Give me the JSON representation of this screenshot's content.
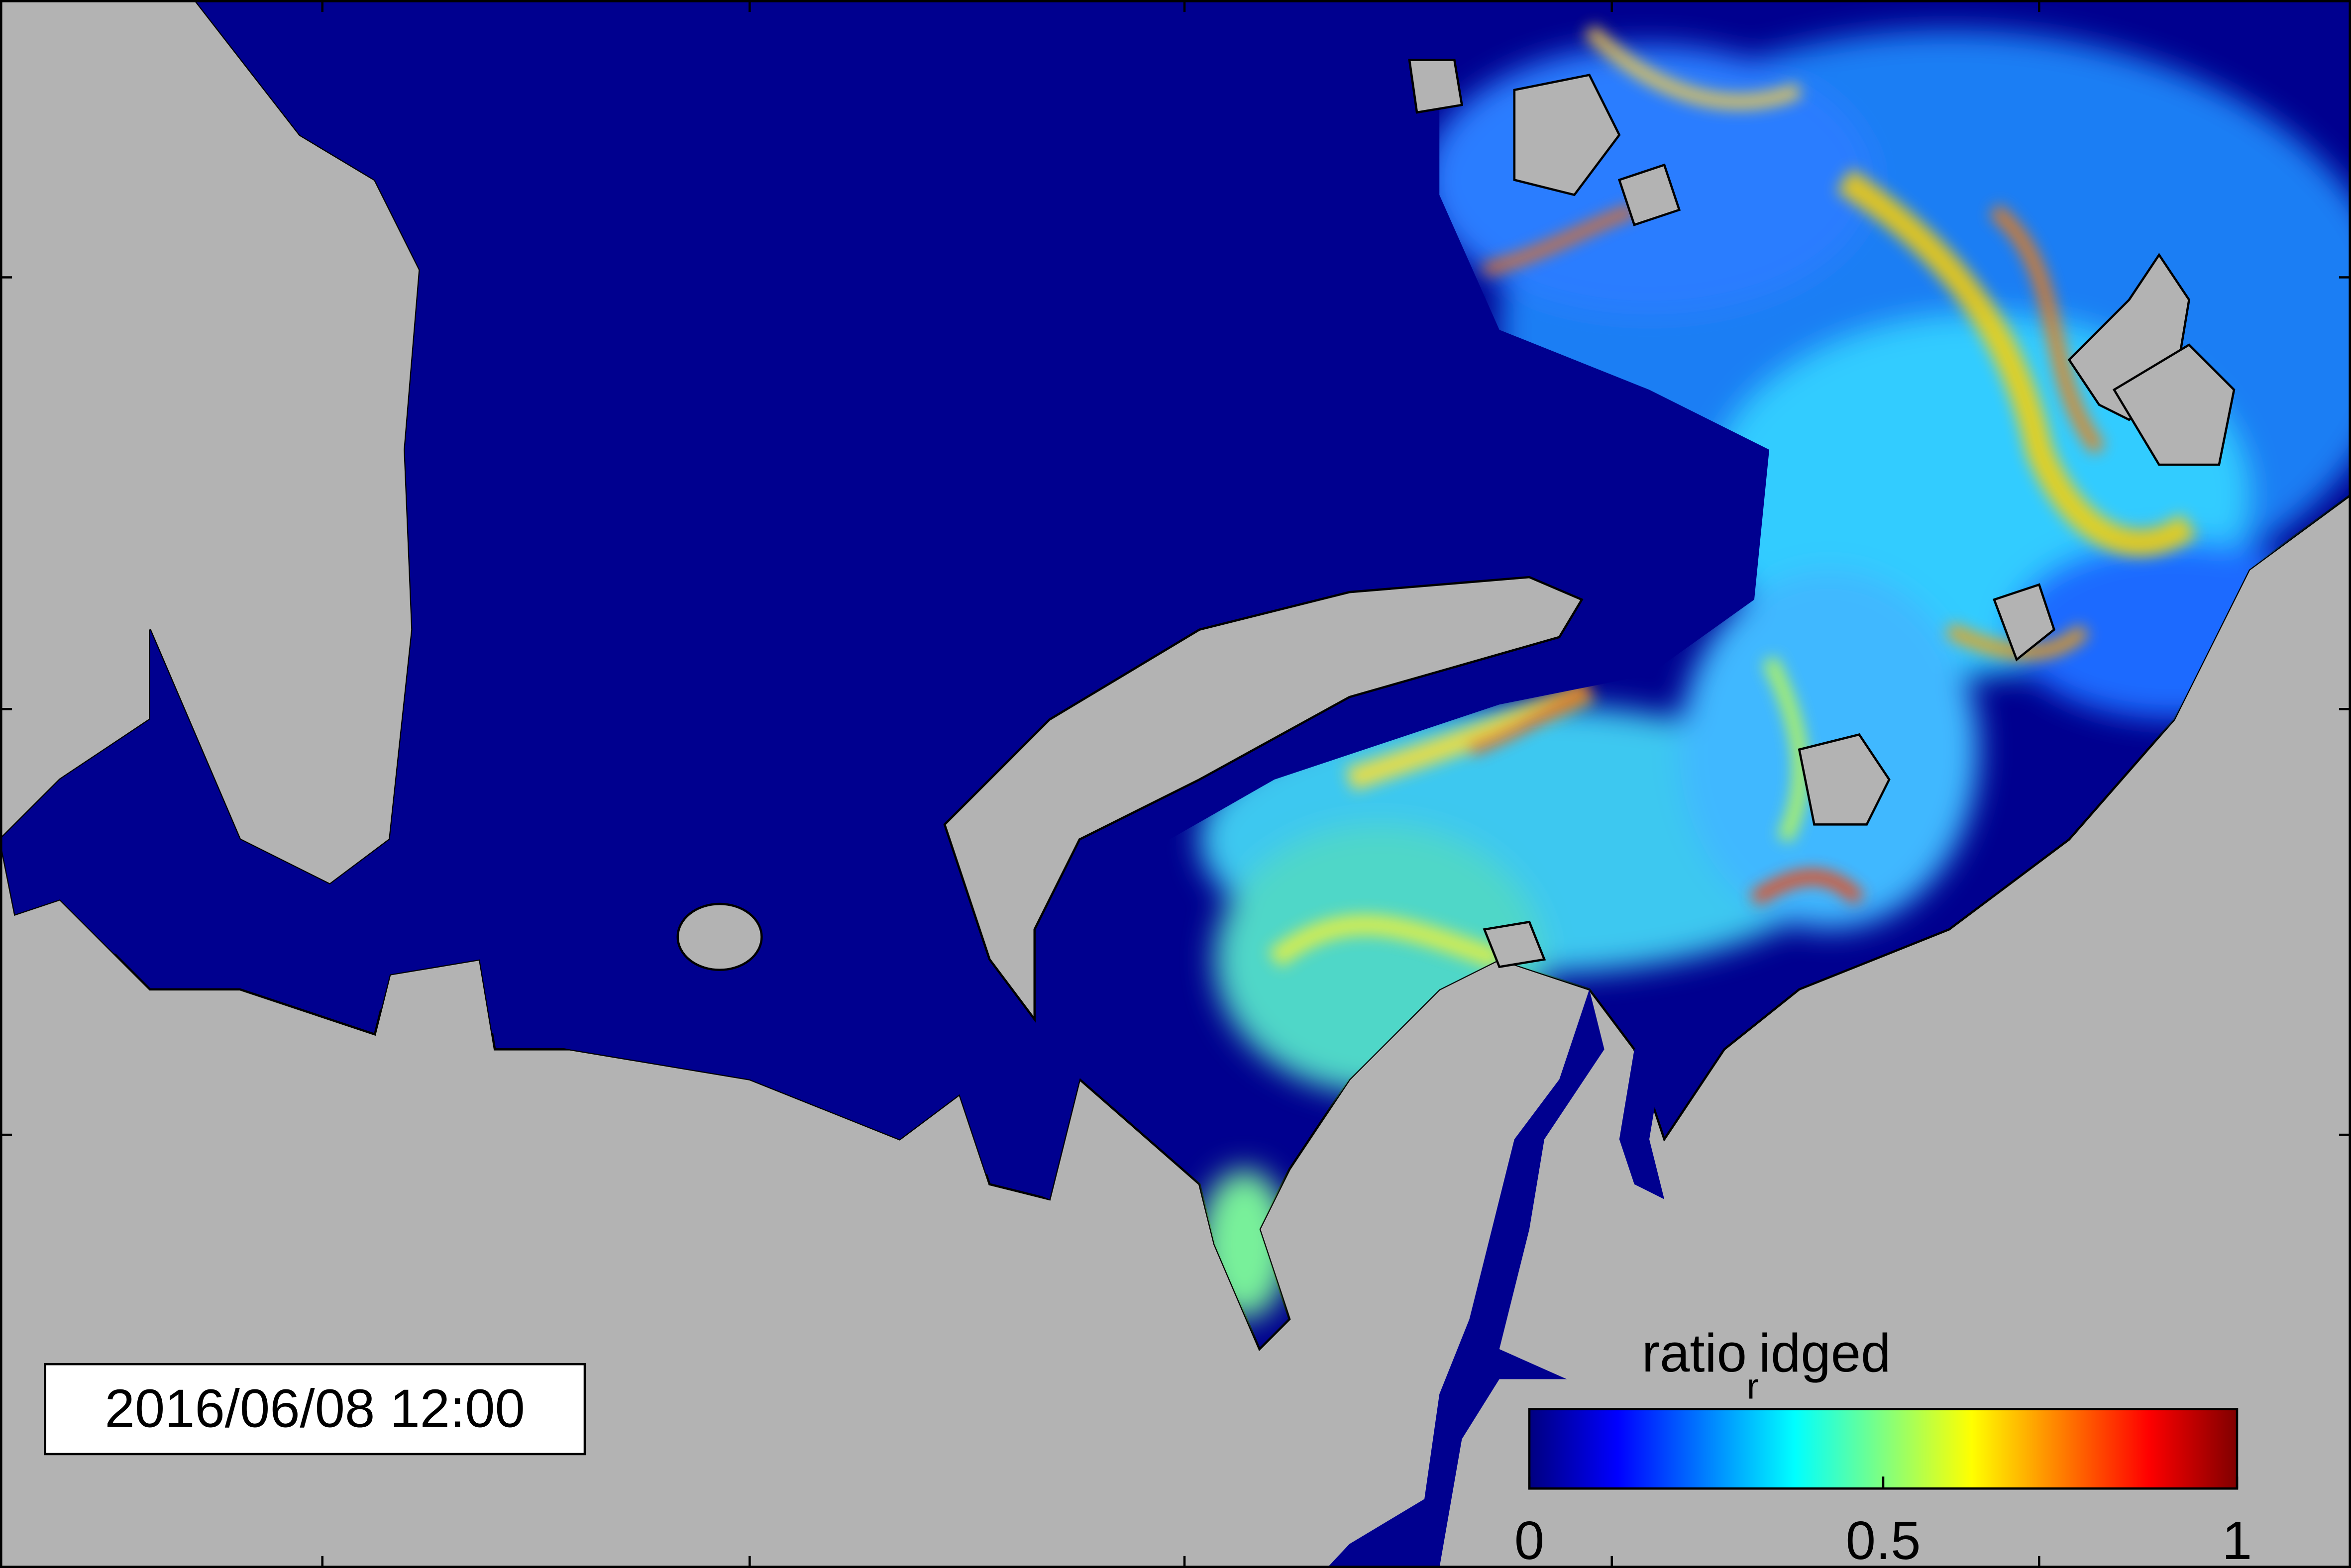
{
  "chart_data": {
    "type": "colormap",
    "timestamp": "2016/06/08 12:00",
    "colorbar_label": {
      "main": "ratio",
      "subscript": "r",
      "rest": "idged"
    },
    "colormap": "jet",
    "clim": [
      0,
      1
    ],
    "cticks": [
      0,
      0.5,
      1
    ]
  }
}
